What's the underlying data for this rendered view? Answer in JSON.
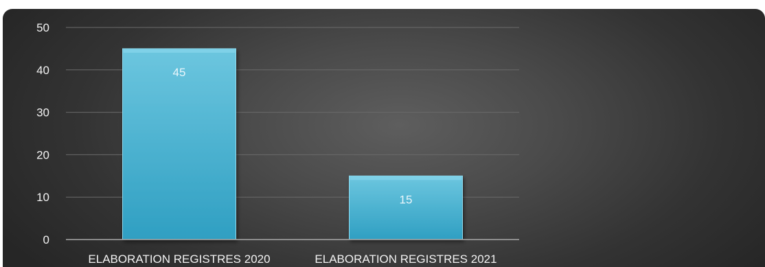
{
  "chart_data": {
    "type": "bar",
    "title": "",
    "xlabel": "",
    "ylabel": "",
    "categories": [
      "ELABORATION REGISTRES 2020",
      "ELABORATION REGISTRES 2021"
    ],
    "values": [
      45,
      15
    ],
    "data_labels": [
      "45",
      "15"
    ],
    "ylim": [
      0,
      50
    ],
    "yticks": [
      0,
      10,
      20,
      30,
      40,
      50
    ],
    "ytick_labels": [
      "0",
      "10",
      "20",
      "30",
      "40",
      "50"
    ],
    "grid": true,
    "legend": "none",
    "colors": {
      "bar_top": "#6cc6df",
      "bar_bottom": "#2f9fc2",
      "bar_edge": "#8fdaee",
      "gridline": "#6a6a6a",
      "axis": "#a8a8a8",
      "text": "#f2f2f2"
    }
  }
}
